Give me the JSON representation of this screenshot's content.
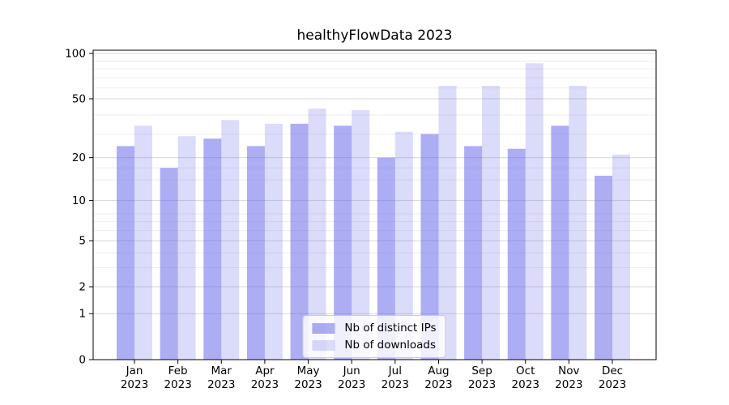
{
  "title": "healthyFlowData 2023",
  "chart_data": {
    "type": "bar",
    "title": "healthyFlowData 2023",
    "categories": [
      "Jan",
      "Feb",
      "Mar",
      "Apr",
      "May",
      "Jun",
      "Jul",
      "Aug",
      "Sep",
      "Oct",
      "Nov",
      "Dec"
    ],
    "x_tick_year": "2023",
    "series": [
      {
        "name": "Nb of distinct IPs",
        "color": "#5c5ce9",
        "opacity": 0.5,
        "values": [
          24,
          17,
          27,
          24,
          34,
          33,
          20,
          29,
          24,
          23,
          33,
          15
        ]
      },
      {
        "name": "Nb of downloads",
        "color": "#5c5ce9",
        "opacity": 0.22,
        "values": [
          33,
          28,
          36,
          34,
          43,
          42,
          30,
          61,
          61,
          86,
          61,
          21
        ]
      }
    ],
    "xlabel": "",
    "ylabel": "",
    "y_scale": "log1p",
    "y_ticks": [
      0,
      1,
      2,
      5,
      10,
      20,
      50,
      100
    ],
    "y_minor_gridlines": [
      3,
      4,
      6,
      7,
      8,
      14,
      17,
      29,
      39,
      59,
      69,
      79,
      89
    ],
    "ylim": [
      0,
      105
    ],
    "grid": "horizontal",
    "legend_position": "lower center",
    "colors": {
      "bar_dark_rendered": "#adadf4",
      "bar_light_rendered": "#d9d9f8",
      "grid_major": "#d8d8d8",
      "grid_minor": "#eeeeee",
      "frame": "#000000"
    }
  }
}
